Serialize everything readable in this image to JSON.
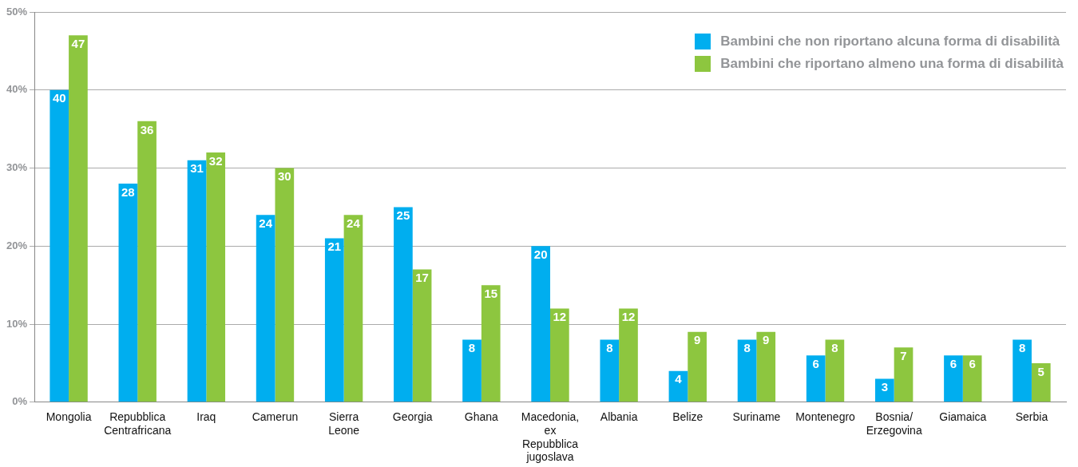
{
  "chart_data": {
    "type": "bar",
    "categories": [
      "Mongolia",
      "Repubblica Centrafricana",
      "Iraq",
      "Camerun",
      "Sierra Leone",
      "Georgia",
      "Ghana",
      "Macedonia, ex Repubblica jugoslava",
      "Albania",
      "Belize",
      "Suriname",
      "Montenegro",
      "Bosnia/ Erzegovina",
      "Giamaica",
      "Serbia"
    ],
    "series": [
      {
        "name": "Bambini che non riportano alcuna forma di disabilità",
        "color": "#00aeef",
        "values": [
          40,
          28,
          31,
          24,
          21,
          25,
          8,
          20,
          8,
          4,
          8,
          6,
          3,
          6,
          8
        ]
      },
      {
        "name": "Bambini che riportano almeno una forma di disabilità",
        "color": "#8dc63f",
        "values": [
          47,
          36,
          32,
          30,
          24,
          17,
          15,
          12,
          12,
          9,
          9,
          8,
          7,
          6,
          5
        ]
      }
    ],
    "ylim": [
      0,
      50
    ],
    "yticks": [
      {
        "value": 0,
        "label": "0%"
      },
      {
        "value": 10,
        "label": "10%"
      },
      {
        "value": 20,
        "label": "20%"
      },
      {
        "value": 30,
        "label": "30%"
      },
      {
        "value": 40,
        "label": "40%"
      },
      {
        "value": 50,
        "label": "50%"
      }
    ],
    "grid": "y",
    "legend": "top right",
    "data_labels": true
  }
}
